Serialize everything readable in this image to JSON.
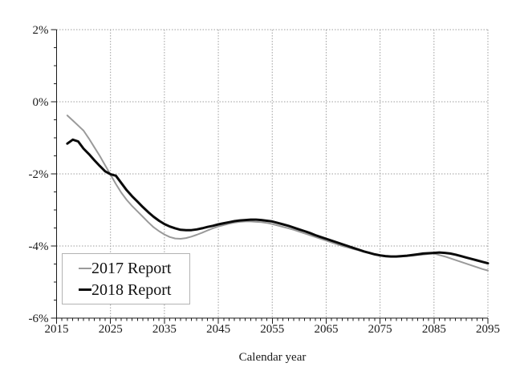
{
  "chart_data": {
    "type": "line",
    "title": "",
    "xlabel": "Calendar year",
    "ylabel": "",
    "xlim": [
      2015,
      2095
    ],
    "ylim": [
      -6,
      2
    ],
    "x_major_ticks": [
      2015,
      2025,
      2035,
      2045,
      2055,
      2065,
      2075,
      2085,
      2095
    ],
    "x_minor_step": 1,
    "y_major_ticks": [
      {
        "value": 2,
        "label": "2%"
      },
      {
        "value": 0,
        "label": "0%"
      },
      {
        "value": -2,
        "label": "-2%"
      },
      {
        "value": -4,
        "label": "-4%"
      },
      {
        "value": -6,
        "label": "-6%"
      }
    ],
    "y_minor_step": 0.5,
    "grid": true,
    "grid_color": "#9e9e9e",
    "axis_color": "#1a1a1a",
    "legend_position": "bottom-left",
    "series": [
      {
        "name": "2017 Report",
        "color": "#9a9a9a",
        "stroke_width": 2,
        "start_year": 2017,
        "values": [
          -0.38,
          -0.52,
          -0.66,
          -0.8,
          -1.02,
          -1.26,
          -1.5,
          -1.76,
          -2.02,
          -2.28,
          -2.52,
          -2.72,
          -2.89,
          -3.04,
          -3.19,
          -3.34,
          -3.48,
          -3.59,
          -3.68,
          -3.75,
          -3.79,
          -3.8,
          -3.78,
          -3.74,
          -3.69,
          -3.63,
          -3.57,
          -3.51,
          -3.46,
          -3.42,
          -3.38,
          -3.35,
          -3.33,
          -3.32,
          -3.32,
          -3.33,
          -3.34,
          -3.36,
          -3.39,
          -3.43,
          -3.47,
          -3.51,
          -3.55,
          -3.6,
          -3.65,
          -3.7,
          -3.75,
          -3.8,
          -3.85,
          -3.9,
          -3.95,
          -4.0,
          -4.04,
          -4.08,
          -4.12,
          -4.16,
          -4.2,
          -4.24,
          -4.27,
          -4.29,
          -4.3,
          -4.3,
          -4.29,
          -4.28,
          -4.27,
          -4.25,
          -4.24,
          -4.22,
          -4.21,
          -4.25,
          -4.29,
          -4.34,
          -4.39,
          -4.44,
          -4.49,
          -4.54,
          -4.59,
          -4.64,
          -4.68
        ]
      },
      {
        "name": "2018 Report",
        "color": "#0a0a0a",
        "stroke_width": 3,
        "start_year": 2017,
        "values": [
          -1.16,
          -1.05,
          -1.1,
          -1.3,
          -1.45,
          -1.62,
          -1.78,
          -1.93,
          -2.01,
          -2.05,
          -2.25,
          -2.45,
          -2.62,
          -2.77,
          -2.92,
          -3.06,
          -3.19,
          -3.3,
          -3.39,
          -3.46,
          -3.51,
          -3.55,
          -3.56,
          -3.56,
          -3.54,
          -3.51,
          -3.47,
          -3.44,
          -3.4,
          -3.37,
          -3.34,
          -3.31,
          -3.29,
          -3.28,
          -3.27,
          -3.27,
          -3.28,
          -3.3,
          -3.32,
          -3.36,
          -3.4,
          -3.44,
          -3.49,
          -3.54,
          -3.59,
          -3.64,
          -3.7,
          -3.75,
          -3.8,
          -3.85,
          -3.9,
          -3.95,
          -4.0,
          -4.05,
          -4.1,
          -4.15,
          -4.19,
          -4.23,
          -4.26,
          -4.28,
          -4.29,
          -4.29,
          -4.28,
          -4.27,
          -4.25,
          -4.23,
          -4.21,
          -4.2,
          -4.19,
          -4.18,
          -4.19,
          -4.21,
          -4.24,
          -4.28,
          -4.32,
          -4.36,
          -4.4,
          -4.44,
          -4.48
        ]
      }
    ]
  }
}
